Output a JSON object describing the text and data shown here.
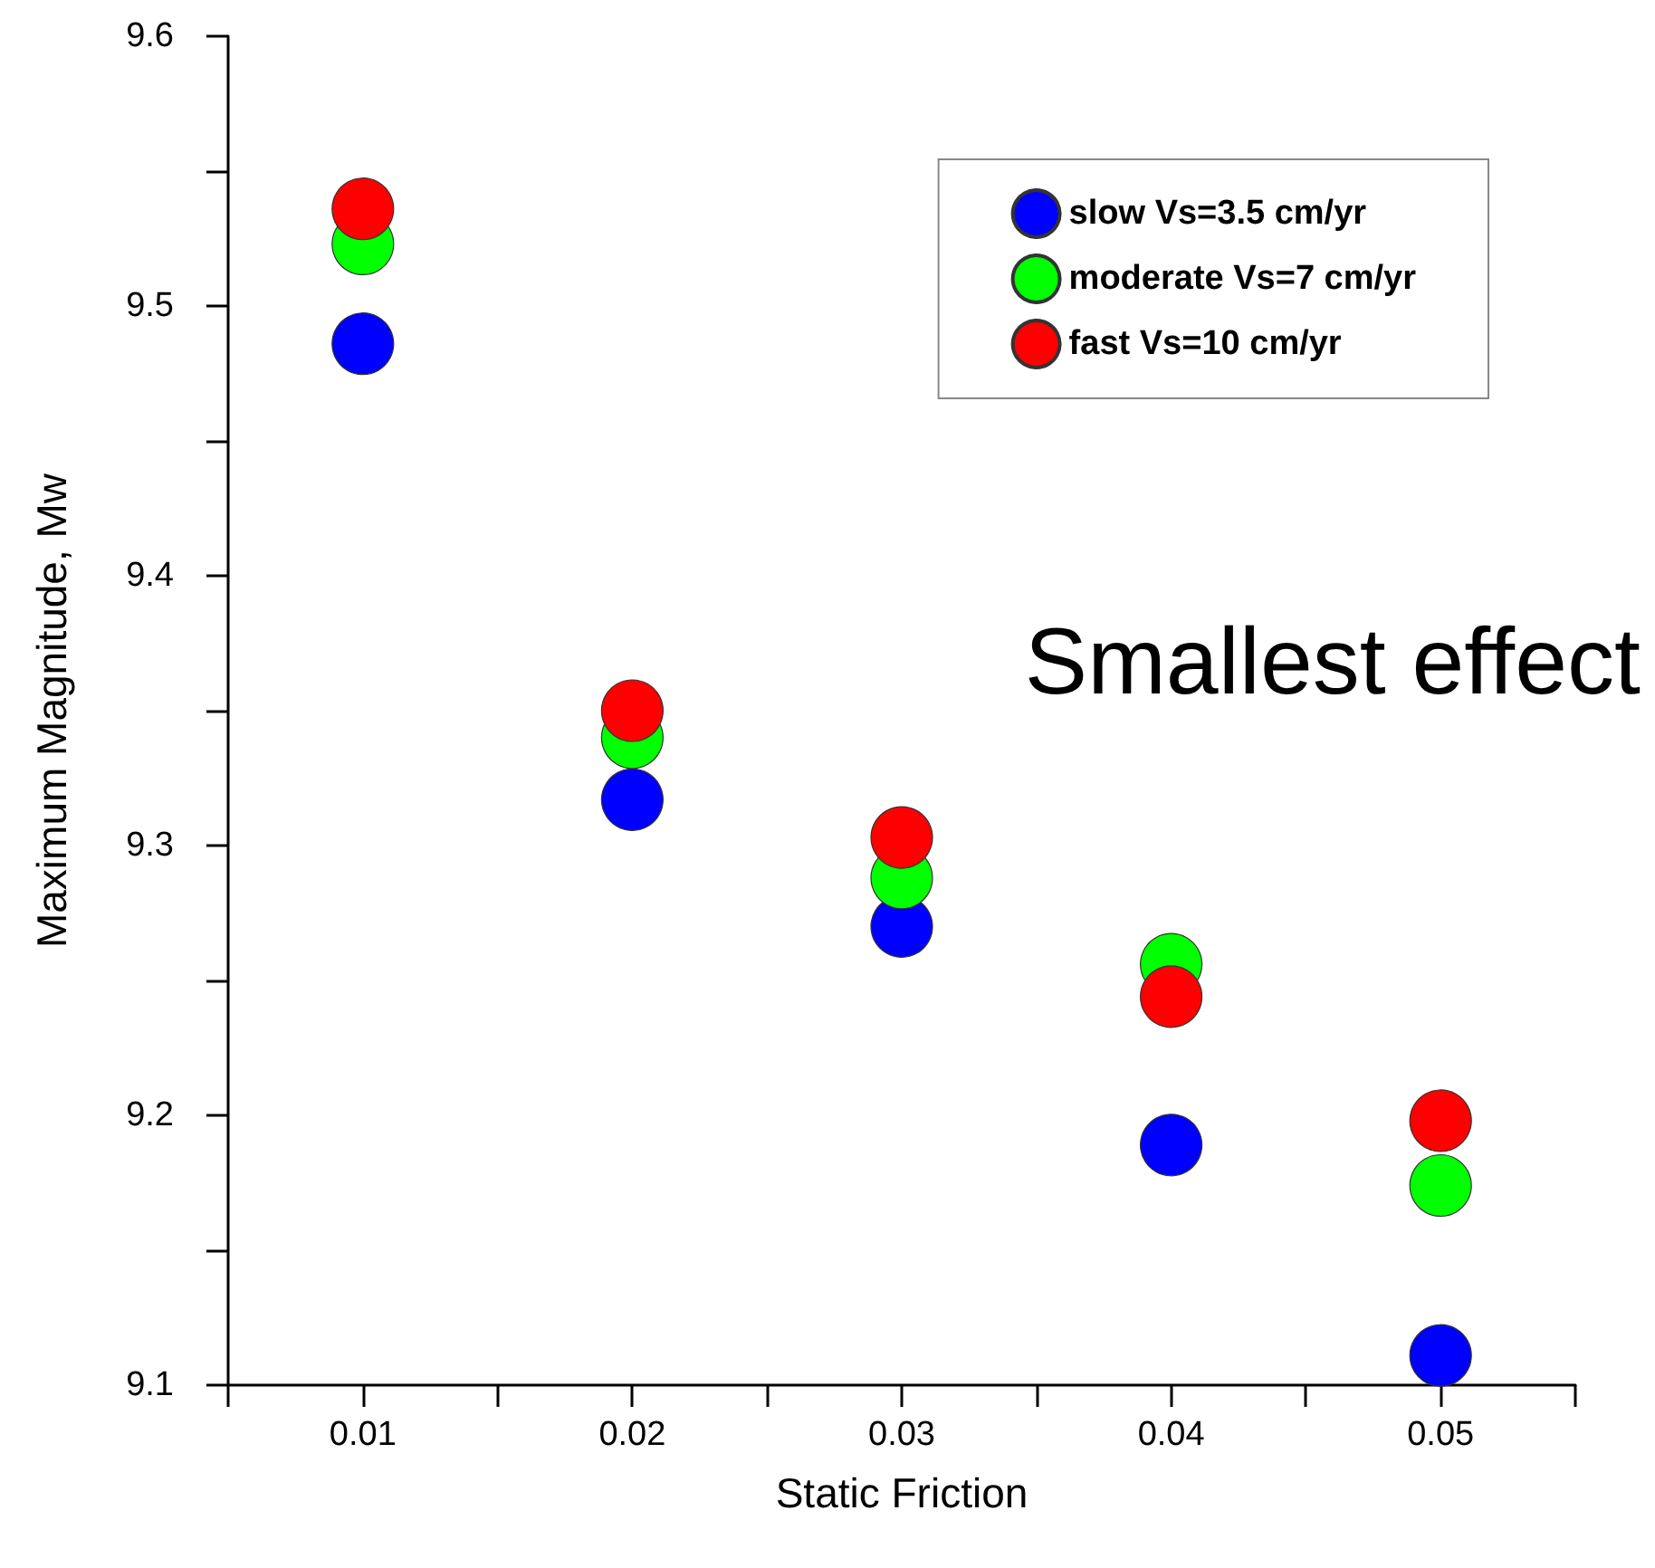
{
  "chart_data": {
    "type": "scatter",
    "xlabel": "Static Friction",
    "ylabel": "Maximum Magnitude, Mw",
    "x": [
      0.01,
      0.02,
      0.03,
      0.04,
      0.05
    ],
    "series": [
      {
        "name": "slow Vs=3.5 cm/yr",
        "color": "#0000ff",
        "values": [
          9.486,
          9.317,
          9.27,
          9.189,
          9.111
        ]
      },
      {
        "name": "moderate Vs=7 cm/yr",
        "color": "#00ff00",
        "values": [
          9.523,
          9.34,
          9.288,
          9.256,
          9.174
        ]
      },
      {
        "name": "fast Vs=10 cm/yr",
        "color": "#ff0000",
        "values": [
          9.536,
          9.35,
          9.303,
          9.244,
          9.198
        ]
      }
    ],
    "xlim": [
      0.005,
      0.055
    ],
    "xticks": [
      {
        "value": 0.005,
        "label": null
      },
      0.01,
      {
        "value": 0.015,
        "label": null
      },
      0.02,
      {
        "value": 0.025,
        "label": null
      },
      0.03,
      {
        "value": 0.035,
        "label": null
      },
      0.04,
      {
        "value": 0.045,
        "label": null
      },
      0.05,
      {
        "value": 0.055,
        "label": null
      }
    ],
    "ylim": [
      9.1,
      9.6
    ],
    "yticks": [
      9.1,
      {
        "value": 9.15,
        "label": null
      },
      9.2,
      {
        "value": 9.25,
        "label": null
      },
      9.3,
      {
        "value": 9.35,
        "label": null
      },
      9.4,
      {
        "value": 9.45,
        "label": null
      },
      9.5,
      {
        "value": 9.55,
        "label": null
      },
      9.6
    ],
    "annotations": [
      "Smallest effect"
    ],
    "marker": "circle",
    "legend": "top right",
    "grid": false
  }
}
